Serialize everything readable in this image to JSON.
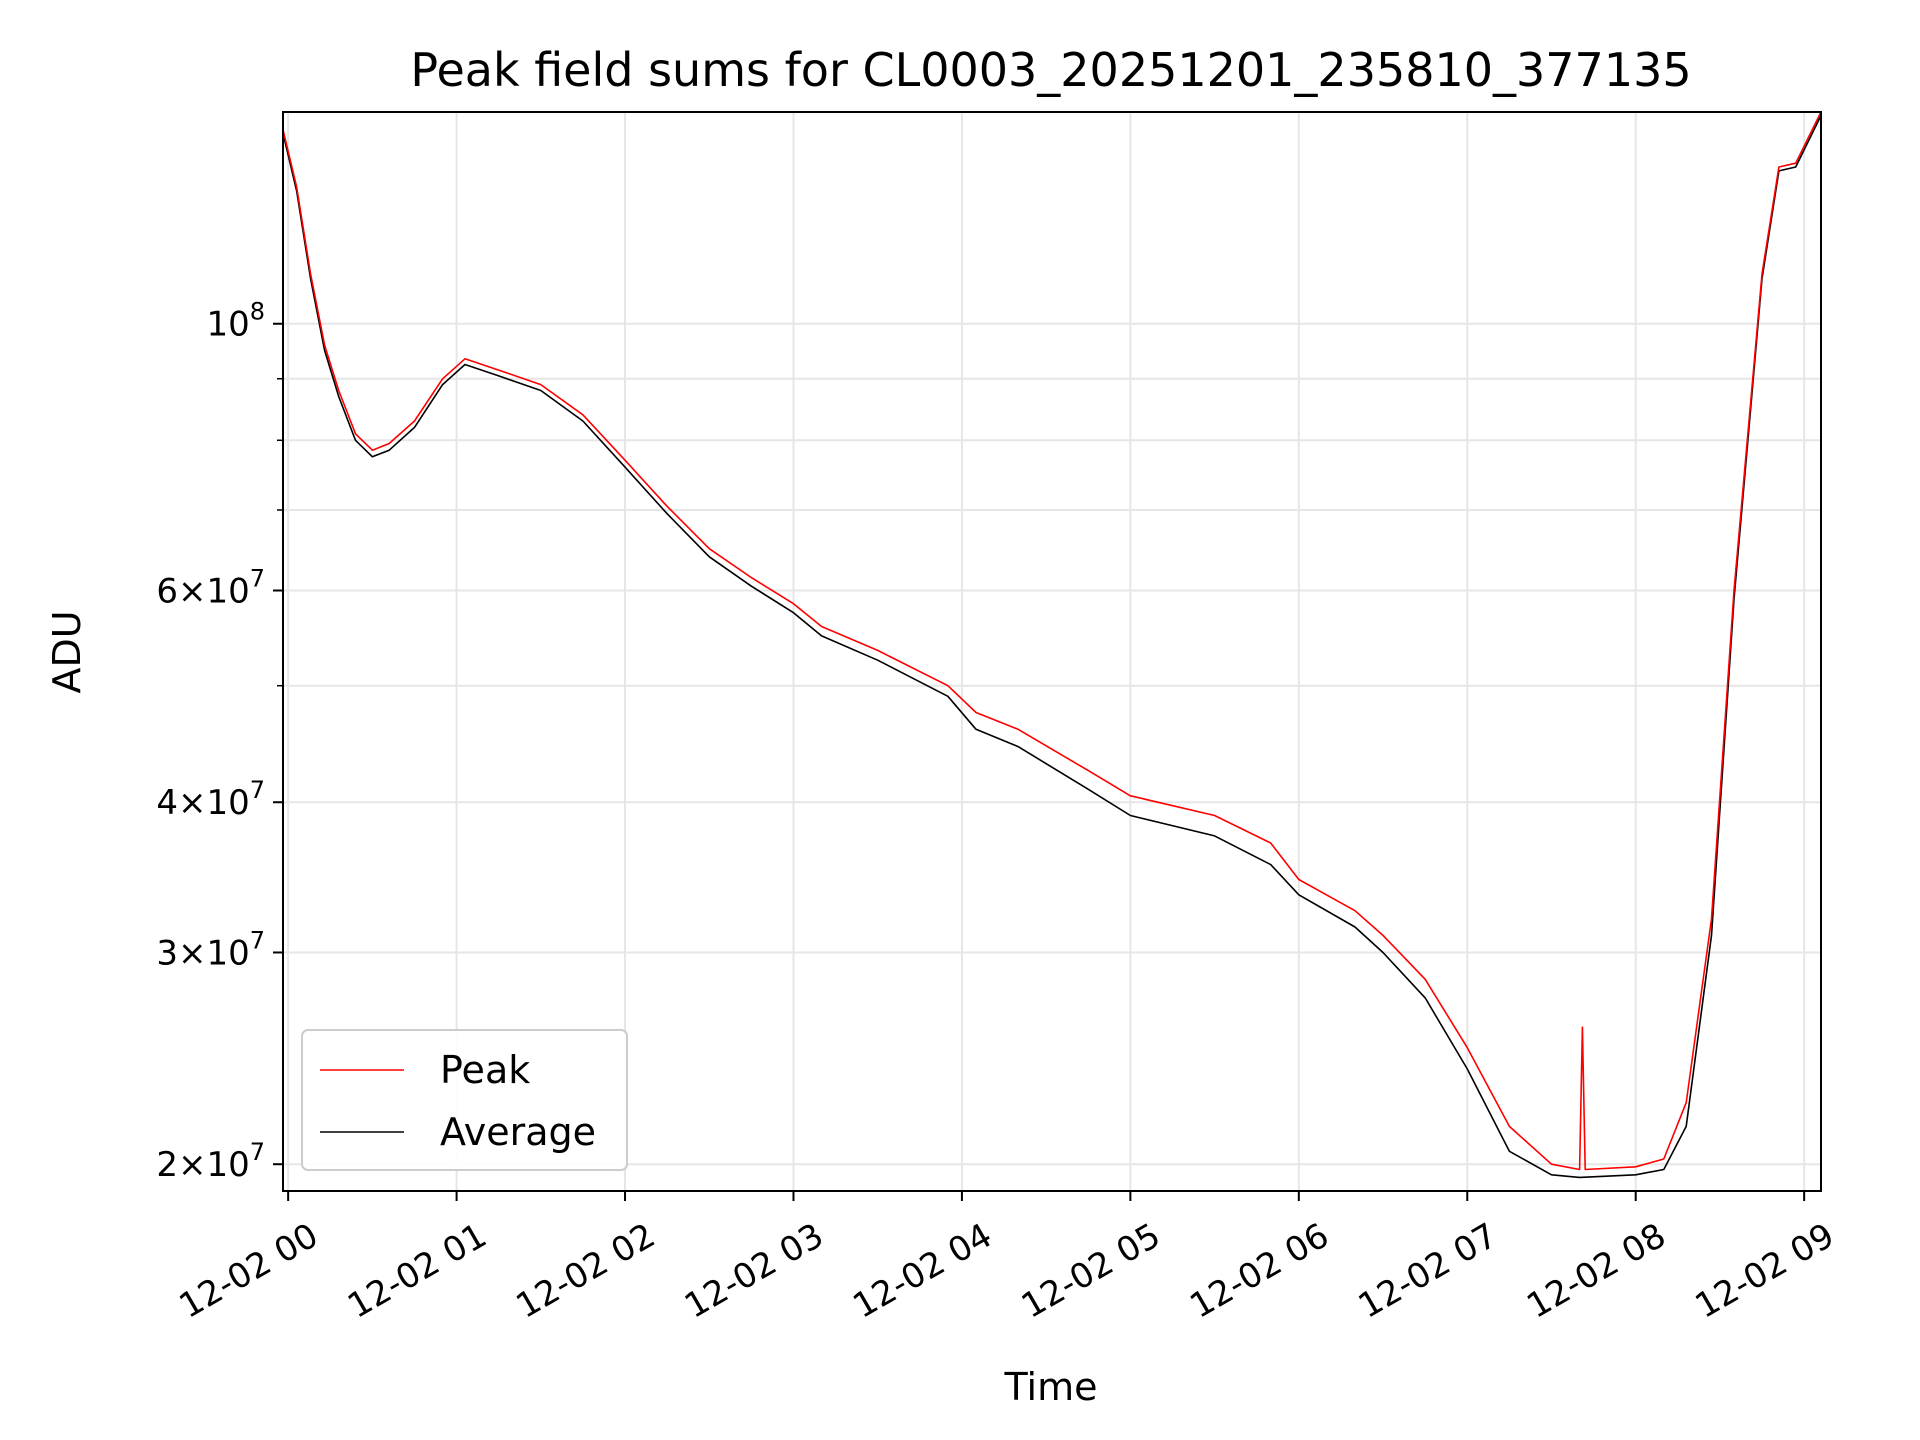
{
  "chart_data": {
    "type": "line",
    "title": "Peak field sums for CL0003_20251201_235810_377135",
    "xlabel": "Time",
    "ylabel": "ADU",
    "y_scale": "log",
    "ylim": [
      19000000,
      150000000
    ],
    "xlim": [
      "2025-12-01 23:58:10",
      "2025-12-02 09:06:00"
    ],
    "x_ticks": [
      {
        "time": "2025-12-02 00:00",
        "label": "12-02 00"
      },
      {
        "time": "2025-12-02 01:00",
        "label": "12-02 01"
      },
      {
        "time": "2025-12-02 02:00",
        "label": "12-02 02"
      },
      {
        "time": "2025-12-02 03:00",
        "label": "12-02 03"
      },
      {
        "time": "2025-12-02 04:00",
        "label": "12-02 04"
      },
      {
        "time": "2025-12-02 05:00",
        "label": "12-02 05"
      },
      {
        "time": "2025-12-02 06:00",
        "label": "12-02 06"
      },
      {
        "time": "2025-12-02 07:00",
        "label": "12-02 07"
      },
      {
        "time": "2025-12-02 08:00",
        "label": "12-02 08"
      },
      {
        "time": "2025-12-02 09:00",
        "label": "12-02 09"
      }
    ],
    "y_major_ticks": [
      {
        "value": 20000000,
        "mantissa": "2",
        "exp": "7"
      },
      {
        "value": 30000000,
        "mantissa": "3",
        "exp": "7"
      },
      {
        "value": 40000000,
        "mantissa": "4",
        "exp": "7"
      },
      {
        "value": 60000000,
        "mantissa": "6",
        "exp": "7"
      },
      {
        "value": 100000000,
        "mantissa": "",
        "exp": "8"
      }
    ],
    "y_minor_gridlines": [
      50000000,
      70000000,
      80000000,
      90000000
    ],
    "grid": true,
    "legend_position": "lower-left",
    "series": [
      {
        "name": "Peak",
        "color": "#ff0000",
        "points": [
          [
            "2025-12-01 23:58:10",
            145000000
          ],
          [
            "2025-12-02 00:03",
            130000000
          ],
          [
            "2025-12-02 00:08",
            110000000
          ],
          [
            "2025-12-02 00:13",
            96000000
          ],
          [
            "2025-12-02 00:18",
            88000000
          ],
          [
            "2025-12-02 00:24",
            81000000
          ],
          [
            "2025-12-02 00:30",
            78500000
          ],
          [
            "2025-12-02 00:36",
            79500000
          ],
          [
            "2025-12-02 00:45",
            83000000
          ],
          [
            "2025-12-02 00:55",
            90000000
          ],
          [
            "2025-12-02 01:03",
            93500000
          ],
          [
            "2025-12-02 01:15",
            91500000
          ],
          [
            "2025-12-02 01:30",
            89000000
          ],
          [
            "2025-12-02 01:45",
            84000000
          ],
          [
            "2025-12-02 02:00",
            77000000
          ],
          [
            "2025-12-02 02:15",
            70500000
          ],
          [
            "2025-12-02 02:30",
            65000000
          ],
          [
            "2025-12-02 02:45",
            61500000
          ],
          [
            "2025-12-02 03:00",
            58500000
          ],
          [
            "2025-12-02 03:10",
            56000000
          ],
          [
            "2025-12-02 03:30",
            53500000
          ],
          [
            "2025-12-02 03:55",
            50000000
          ],
          [
            "2025-12-02 04:05",
            47500000
          ],
          [
            "2025-12-02 04:20",
            46000000
          ],
          [
            "2025-12-02 04:45",
            42500000
          ],
          [
            "2025-12-02 05:00",
            40500000
          ],
          [
            "2025-12-02 05:30",
            39000000
          ],
          [
            "2025-12-02 05:50",
            37000000
          ],
          [
            "2025-12-02 06:00",
            34500000
          ],
          [
            "2025-12-02 06:20",
            32500000
          ],
          [
            "2025-12-02 06:30",
            31000000
          ],
          [
            "2025-12-02 06:45",
            28500000
          ],
          [
            "2025-12-02 07:00",
            25000000
          ],
          [
            "2025-12-02 07:15",
            21500000
          ],
          [
            "2025-12-02 07:30",
            20000000
          ],
          [
            "2025-12-02 07:40",
            19800000
          ],
          [
            "2025-12-02 07:41",
            26000000
          ],
          [
            "2025-12-02 07:42",
            19800000
          ],
          [
            "2025-12-02 08:00",
            19900000
          ],
          [
            "2025-12-02 08:10",
            20200000
          ],
          [
            "2025-12-02 08:18",
            22500000
          ],
          [
            "2025-12-02 08:27",
            32000000
          ],
          [
            "2025-12-02 08:35",
            60000000
          ],
          [
            "2025-12-02 08:45",
            110000000
          ],
          [
            "2025-12-02 08:51",
            135000000
          ],
          [
            "2025-12-02 08:57",
            136000000
          ],
          [
            "2025-12-02 09:06",
            150000000
          ]
        ]
      },
      {
        "name": "Average",
        "color": "#000000",
        "points": [
          [
            "2025-12-01 23:58:10",
            144000000
          ],
          [
            "2025-12-02 00:03",
            129000000
          ],
          [
            "2025-12-02 00:08",
            109000000
          ],
          [
            "2025-12-02 00:13",
            95000000
          ],
          [
            "2025-12-02 00:18",
            87000000
          ],
          [
            "2025-12-02 00:24",
            80000000
          ],
          [
            "2025-12-02 00:30",
            77500000
          ],
          [
            "2025-12-02 00:36",
            78500000
          ],
          [
            "2025-12-02 00:45",
            82000000
          ],
          [
            "2025-12-02 00:55",
            89000000
          ],
          [
            "2025-12-02 01:03",
            92500000
          ],
          [
            "2025-12-02 01:15",
            90500000
          ],
          [
            "2025-12-02 01:30",
            88000000
          ],
          [
            "2025-12-02 01:45",
            83000000
          ],
          [
            "2025-12-02 02:00",
            76000000
          ],
          [
            "2025-12-02 02:15",
            69500000
          ],
          [
            "2025-12-02 02:30",
            64000000
          ],
          [
            "2025-12-02 02:45",
            60500000
          ],
          [
            "2025-12-02 03:00",
            57500000
          ],
          [
            "2025-12-02 03:10",
            55000000
          ],
          [
            "2025-12-02 03:30",
            52500000
          ],
          [
            "2025-12-02 03:55",
            49000000
          ],
          [
            "2025-12-02 04:05",
            46000000
          ],
          [
            "2025-12-02 04:20",
            44500000
          ],
          [
            "2025-12-02 04:45",
            41000000
          ],
          [
            "2025-12-02 05:00",
            39000000
          ],
          [
            "2025-12-02 05:30",
            37500000
          ],
          [
            "2025-12-02 05:50",
            35500000
          ],
          [
            "2025-12-02 06:00",
            33500000
          ],
          [
            "2025-12-02 06:20",
            31500000
          ],
          [
            "2025-12-02 06:30",
            30000000
          ],
          [
            "2025-12-02 06:45",
            27500000
          ],
          [
            "2025-12-02 07:00",
            24000000
          ],
          [
            "2025-12-02 07:15",
            20500000
          ],
          [
            "2025-12-02 07:30",
            19600000
          ],
          [
            "2025-12-02 07:40",
            19500000
          ],
          [
            "2025-12-02 08:00",
            19600000
          ],
          [
            "2025-12-02 08:10",
            19800000
          ],
          [
            "2025-12-02 08:18",
            21500000
          ],
          [
            "2025-12-02 08:27",
            31000000
          ],
          [
            "2025-12-02 08:35",
            59000000
          ],
          [
            "2025-12-02 08:45",
            109000000
          ],
          [
            "2025-12-02 08:51",
            134000000
          ],
          [
            "2025-12-02 08:57",
            135000000
          ],
          [
            "2025-12-02 09:06",
            149000000
          ]
        ]
      }
    ]
  }
}
